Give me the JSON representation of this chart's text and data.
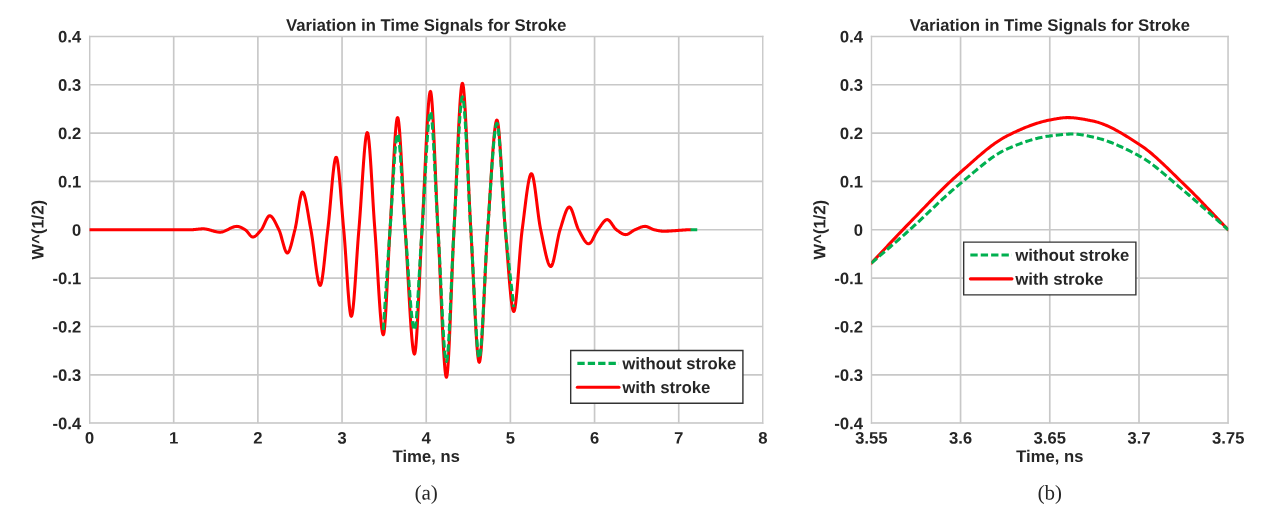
{
  "chart_data": [
    {
      "type": "line",
      "title": "Variation in Time Signals for Stroke",
      "xlabel": "Time, ns",
      "ylabel": "W^(1/2)",
      "xlim": [
        0,
        8
      ],
      "xticks": [
        0,
        1,
        2,
        3,
        4,
        5,
        6,
        7,
        8
      ],
      "ylim": [
        -0.4,
        0.4
      ],
      "yticks": [
        {
          "value": -0.4,
          "label": "-0.4"
        },
        {
          "value": -0.3,
          "label": "-0.3"
        },
        {
          "value": -0.2,
          "label": "-0.2"
        },
        {
          "value": -0.1,
          "label": "-0.1"
        },
        0,
        0.1,
        0.2,
        0.3,
        0.4
      ],
      "grid": true,
      "legend": "bottom right",
      "marker": "none",
      "annotations": [
        "(a)"
      ],
      "series": [
        {
          "name": "without stroke",
          "color": "#00b050",
          "line_style": "dashed",
          "x": [
            3.49,
            3.57,
            3.66,
            3.75,
            3.86,
            3.95,
            4.05,
            4.14,
            4.24,
            4.33,
            4.43,
            4.53,
            4.63,
            4.73,
            4.84,
            4.94,
            5.04,
            5.14,
            7.14,
            7.22
          ],
          "values": [
            -0.207,
            0,
            0.198,
            0,
            -0.207,
            0,
            0.244,
            0,
            -0.272,
            0,
            0.275,
            0,
            -0.265,
            0,
            0.22,
            0,
            -0.16,
            null,
            0,
            0
          ]
        },
        {
          "name": "with stroke",
          "color": "#ff0000",
          "line_style": "solid",
          "x": [
            0,
            1.2,
            1.35,
            1.55,
            1.75,
            1.85,
            1.94,
            2.04,
            2.14,
            2.25,
            2.35,
            2.44,
            2.53,
            2.63,
            2.74,
            2.83,
            2.93,
            3.02,
            3.11,
            3.2,
            3.3,
            3.39,
            3.49,
            3.57,
            3.66,
            3.75,
            3.86,
            3.95,
            4.05,
            4.14,
            4.24,
            4.33,
            4.43,
            4.53,
            4.63,
            4.73,
            4.84,
            4.94,
            5.04,
            5.14,
            5.25,
            5.36,
            5.48,
            5.59,
            5.7,
            5.81,
            5.93,
            6.04,
            6.15,
            6.26,
            6.37,
            6.48,
            6.6,
            6.71,
            6.82,
            7.14
          ],
          "values": [
            0,
            0,
            0.002,
            -0.005,
            0.007,
            0,
            -0.015,
            0,
            0.029,
            0,
            -0.048,
            0,
            0.078,
            0,
            -0.115,
            0,
            0.15,
            0,
            -0.179,
            0,
            0.201,
            0,
            -0.217,
            0,
            0.232,
            0,
            -0.257,
            0,
            0.286,
            0,
            -0.305,
            0,
            0.303,
            0,
            -0.274,
            0,
            0.227,
            0,
            -0.169,
            0,
            0.116,
            0,
            -0.076,
            0,
            0.047,
            0,
            -0.029,
            0,
            0.021,
            0,
            -0.01,
            0,
            0.007,
            0,
            -0.003,
            0
          ]
        }
      ]
    },
    {
      "type": "line",
      "title": "Variation in Time Signals for Stroke",
      "xlabel": "Time, ns",
      "ylabel": "W^(1/2)",
      "xlim": [
        3.55,
        3.75
      ],
      "xticks": [
        3.55,
        3.6,
        3.65,
        3.7,
        3.75
      ],
      "ylim": [
        -0.4,
        0.4
      ],
      "yticks": [
        {
          "value": -0.4,
          "label": "-0.4"
        },
        {
          "value": -0.3,
          "label": "-0.3"
        },
        {
          "value": -0.2,
          "label": "-0.2"
        },
        {
          "value": -0.1,
          "label": "-0.1"
        },
        0,
        0.1,
        0.2,
        0.3,
        0.4
      ],
      "grid": true,
      "legend": "center",
      "marker": "none",
      "annotations": [
        "(b)"
      ],
      "series": [
        {
          "name": "without stroke",
          "color": "#00b050",
          "line_style": "dashed",
          "x": [
            3.55,
            3.57,
            3.6,
            3.626,
            3.65,
            3.663,
            3.674,
            3.7,
            3.725,
            3.75
          ],
          "values": [
            -0.069,
            -0.005,
            0.096,
            0.167,
            0.194,
            0.198,
            0.192,
            0.153,
            0.081,
            0
          ]
        },
        {
          "name": "with stroke",
          "color": "#ff0000",
          "line_style": "solid",
          "x": [
            3.55,
            3.57,
            3.6,
            3.626,
            3.65,
            3.66,
            3.674,
            3.7,
            3.725,
            3.75
          ],
          "values": [
            -0.069,
            0.009,
            0.119,
            0.194,
            0.227,
            0.232,
            0.225,
            0.177,
            0.095,
            0
          ]
        }
      ]
    }
  ]
}
